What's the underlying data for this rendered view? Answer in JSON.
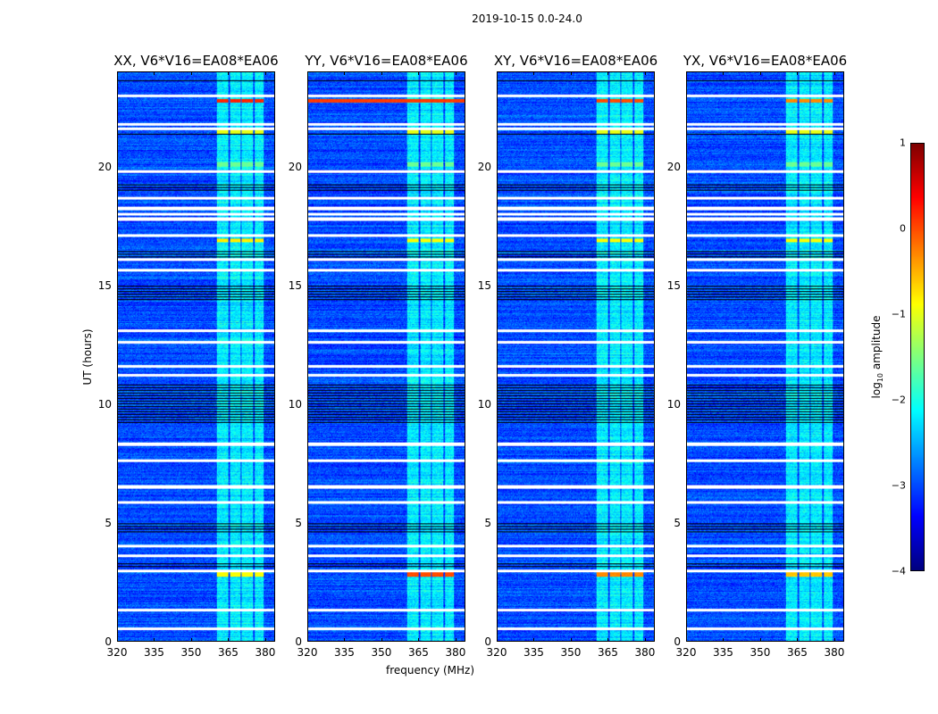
{
  "chart_data": {
    "type": "heatmap",
    "title": "2019-10-15 0.0-24.0",
    "xlabel": "frequency (MHz)",
    "ylabel": "UT (hours)",
    "xlim": [
      320,
      384
    ],
    "ylim": [
      0,
      24
    ],
    "xticks": [
      "320",
      "335",
      "350",
      "365",
      "380"
    ],
    "xtick_values": [
      320,
      335,
      350,
      365,
      380
    ],
    "yticks": [
      "0",
      "5",
      "10",
      "15",
      "20"
    ],
    "ytick_values": [
      0,
      5,
      10,
      15,
      20
    ],
    "colormap": "jet",
    "colorbar": {
      "label": "log10 amplitude",
      "label_main": "log",
      "label_sub": "10",
      "label_rest": " amplitude",
      "range": [
        -4,
        1
      ],
      "ticks": [
        "1",
        "0",
        "−1",
        "−2",
        "−3",
        "−4"
      ],
      "tick_values": [
        1,
        0,
        -1,
        -2,
        -3,
        -4
      ]
    },
    "background_log_amplitude": -3.0,
    "rfi_channels_mhz": [
      [
        360.4,
        365.1
      ],
      [
        365.8,
        370.1
      ],
      [
        370.8,
        375.5
      ],
      [
        376.2,
        379.8
      ]
    ],
    "rfi_log_amplitude": -2.2,
    "flagged_hours_white": [
      19.8,
      18.7,
      18.25,
      17.8,
      17.1,
      16.1,
      15.65,
      13.1,
      11.2,
      7.6,
      5.85,
      2.95,
      21.8,
      21.6,
      18.0,
      12.6,
      11.6,
      8.3,
      6.5,
      4.0,
      3.6,
      1.3,
      0.5,
      23.0
    ],
    "flagged_hours_black": [
      [
        14.4,
        15.0
      ],
      [
        9.15,
        10.8
      ],
      [
        4.5,
        5.0
      ],
      [
        16.15,
        16.5
      ],
      [
        21.3,
        21.45
      ],
      [
        23.6,
        23.65
      ],
      [
        19.0,
        19.3
      ],
      [
        3.1,
        3.3
      ]
    ],
    "panels": [
      {
        "title": "XX, V6*V16=EA08*EA06",
        "bright_rows": [
          {
            "hour": 22.8,
            "value": 0.2,
            "rfi_only": true
          },
          {
            "hour": 21.45,
            "value": -1.0,
            "rfi_only": true
          },
          {
            "hour": 16.9,
            "value": -0.8,
            "rfi_only": true
          },
          {
            "hour": 2.8,
            "value": -0.9,
            "rfi_only": true
          },
          {
            "hour": 20.1,
            "value": -1.6,
            "rfi_only": true
          }
        ]
      },
      {
        "title": "YY, V6*V16=EA08*EA06",
        "bright_rows": [
          {
            "hour": 22.8,
            "value": 0.1,
            "rfi_only": false
          },
          {
            "hour": 21.45,
            "value": -1.0,
            "rfi_only": true
          },
          {
            "hour": 16.9,
            "value": -0.9,
            "rfi_only": true
          },
          {
            "hour": 2.8,
            "value": 0.0,
            "rfi_only": true
          },
          {
            "hour": 20.1,
            "value": -1.6,
            "rfi_only": true
          }
        ]
      },
      {
        "title": "XY, V6*V16=EA08*EA06",
        "bright_rows": [
          {
            "hour": 22.8,
            "value": 0.0,
            "rfi_only": true
          },
          {
            "hour": 21.45,
            "value": -1.0,
            "rfi_only": true
          },
          {
            "hour": 16.9,
            "value": -0.9,
            "rfi_only": true
          },
          {
            "hour": 2.8,
            "value": -0.3,
            "rfi_only": true
          },
          {
            "hour": 20.1,
            "value": -1.6,
            "rfi_only": true
          }
        ]
      },
      {
        "title": "YX, V6*V16=EA08*EA06",
        "bright_rows": [
          {
            "hour": 22.8,
            "value": -0.3,
            "rfi_only": true
          },
          {
            "hour": 21.45,
            "value": -1.0,
            "rfi_only": true
          },
          {
            "hour": 16.9,
            "value": -0.9,
            "rfi_only": true
          },
          {
            "hour": 2.8,
            "value": -0.6,
            "rfi_only": true
          },
          {
            "hour": 20.1,
            "value": -1.6,
            "rfi_only": true
          }
        ]
      }
    ]
  }
}
